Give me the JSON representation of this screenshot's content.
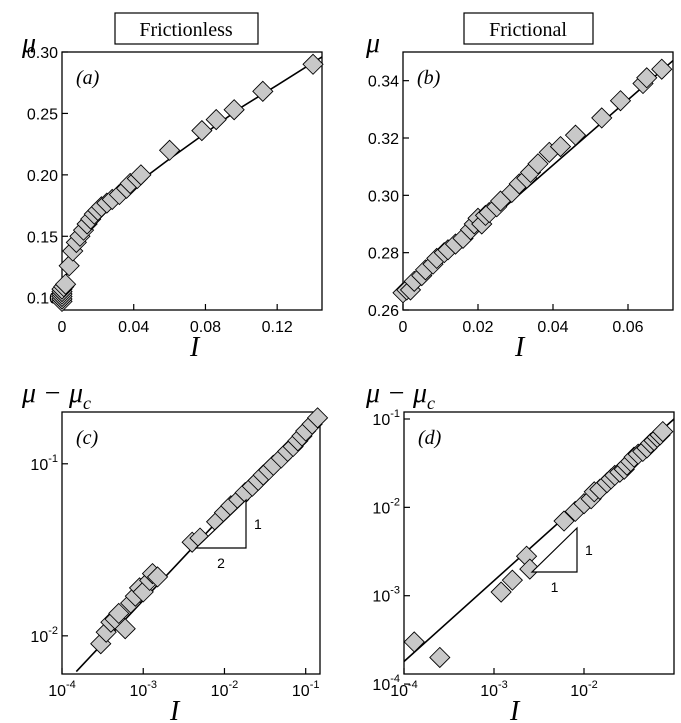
{
  "header_labels": [
    "Frictionless",
    "Frictional"
  ],
  "chart_data": [
    {
      "panel": "(a)",
      "type": "scatter",
      "xscale": "linear",
      "yscale": "linear",
      "ylabel": "μ",
      "xlabel": "I",
      "xlim": [
        0,
        0.145
      ],
      "ylim": [
        0.09,
        0.3
      ],
      "xticks": [
        0,
        0.04,
        0.08,
        0.12
      ],
      "xtick_labels": [
        "0",
        "0.04",
        "0.08",
        "0.12"
      ],
      "yticks": [
        0.1,
        0.15,
        0.2,
        0.25,
        0.3
      ],
      "ytick_labels": [
        "0.10",
        "0.15",
        "0.20",
        "0.25",
        "0.30"
      ],
      "series": [
        {
          "points": [
            [
              0,
              0.097
            ],
            [
              0,
              0.099
            ],
            [
              0,
              0.101
            ],
            [
              0,
              0.103
            ],
            [
              0,
              0.105
            ],
            [
              0,
              0.107
            ],
            [
              0.001,
              0.109
            ],
            [
              0.002,
              0.111
            ],
            [
              0.004,
              0.126
            ],
            [
              0.006,
              0.138
            ],
            [
              0.008,
              0.145
            ],
            [
              0.01,
              0.15
            ],
            [
              0.012,
              0.155
            ],
            [
              0.014,
              0.16
            ],
            [
              0.016,
              0.164
            ],
            [
              0.018,
              0.168
            ],
            [
              0.02,
              0.171
            ],
            [
              0.022,
              0.174
            ],
            [
              0.025,
              0.177
            ],
            [
              0.028,
              0.18
            ],
            [
              0.032,
              0.184
            ],
            [
              0.036,
              0.189
            ],
            [
              0.038,
              0.193
            ],
            [
              0.042,
              0.197
            ],
            [
              0.044,
              0.2
            ],
            [
              0.06,
              0.22
            ],
            [
              0.078,
              0.236
            ],
            [
              0.086,
              0.245
            ],
            [
              0.096,
              0.253
            ],
            [
              0.112,
              0.268
            ],
            [
              0.14,
              0.29
            ]
          ],
          "fit": [
            [
              0,
              0.104
            ],
            [
              0.002,
              0.117
            ],
            [
              0.005,
              0.128
            ],
            [
              0.01,
              0.143
            ],
            [
              0.02,
              0.163
            ],
            [
              0.03,
              0.178
            ],
            [
              0.04,
              0.191
            ],
            [
              0.06,
              0.213
            ],
            [
              0.08,
              0.234
            ],
            [
              0.1,
              0.255
            ],
            [
              0.12,
              0.273
            ],
            [
              0.145,
              0.296
            ]
          ]
        }
      ]
    },
    {
      "panel": "(b)",
      "type": "scatter",
      "xscale": "linear",
      "yscale": "linear",
      "ylabel": "μ",
      "xlabel": "I",
      "xlim": [
        0,
        0.072
      ],
      "ylim": [
        0.26,
        0.35
      ],
      "xticks": [
        0,
        0.02,
        0.04,
        0.06
      ],
      "xtick_labels": [
        "0",
        "0.02",
        "0.04",
        "0.06"
      ],
      "yticks": [
        0.26,
        0.28,
        0.3,
        0.32,
        0.34
      ],
      "ytick_labels": [
        "0.26",
        "0.28",
        "0.30",
        "0.32",
        "0.34"
      ],
      "series": [
        {
          "points": [
            [
              0,
              0.266
            ],
            [
              0.001,
              0.267
            ],
            [
              0.002,
              0.267
            ],
            [
              0.003,
              0.27
            ],
            [
              0.005,
              0.272
            ],
            [
              0.006,
              0.274
            ],
            [
              0.008,
              0.276
            ],
            [
              0.009,
              0.278
            ],
            [
              0.011,
              0.28
            ],
            [
              0.012,
              0.281
            ],
            [
              0.014,
              0.283
            ],
            [
              0.016,
              0.285
            ],
            [
              0.018,
              0.288
            ],
            [
              0.019,
              0.29
            ],
            [
              0.02,
              0.292
            ],
            [
              0.021,
              0.29
            ],
            [
              0.022,
              0.293
            ],
            [
              0.023,
              0.294
            ],
            [
              0.025,
              0.296
            ],
            [
              0.026,
              0.298
            ],
            [
              0.029,
              0.301
            ],
            [
              0.031,
              0.304
            ],
            [
              0.033,
              0.306
            ],
            [
              0.034,
              0.308
            ],
            [
              0.036,
              0.311
            ],
            [
              0.039,
              0.315
            ],
            [
              0.042,
              0.317
            ],
            [
              0.046,
              0.321
            ],
            [
              0.053,
              0.327
            ],
            [
              0.058,
              0.333
            ],
            [
              0.064,
              0.339
            ],
            [
              0.065,
              0.341
            ],
            [
              0.069,
              0.344
            ]
          ],
          "fit": [
            [
              0,
              0.265
            ],
            [
              0.072,
              0.347
            ]
          ]
        }
      ]
    },
    {
      "panel": "(c)",
      "type": "scatter",
      "xscale": "log",
      "yscale": "log",
      "ylabel": "μ − μ_c",
      "xlabel": "I",
      "xlim": [
        0.0001,
        0.15
      ],
      "ylim": [
        0.006,
        0.2
      ],
      "xticks": [
        0.0001,
        0.001,
        0.01,
        0.1
      ],
      "xtick_labels": [
        "10-4",
        "10-3",
        "10-2",
        "10-1"
      ],
      "yticks": [
        0.01,
        0.1
      ],
      "ytick_labels": [
        "10-2",
        "10-1"
      ],
      "slope_triangle": {
        "rise": "1",
        "run": "2"
      },
      "series": [
        {
          "points": [
            [
              0.0003,
              0.009
            ],
            [
              0.00035,
              0.0105
            ],
            [
              0.0004,
              0.012
            ],
            [
              0.00045,
              0.0125
            ],
            [
              0.0005,
              0.0135
            ],
            [
              0.0006,
              0.011
            ],
            [
              0.0007,
              0.0155
            ],
            [
              0.0008,
              0.017
            ],
            [
              0.0009,
              0.019
            ],
            [
              0.001,
              0.018
            ],
            [
              0.0012,
              0.021
            ],
            [
              0.0013,
              0.023
            ],
            [
              0.0015,
              0.022
            ],
            [
              0.004,
              0.035
            ],
            [
              0.005,
              0.037
            ],
            [
              0.008,
              0.046
            ],
            [
              0.01,
              0.052
            ],
            [
              0.012,
              0.057
            ],
            [
              0.015,
              0.062
            ],
            [
              0.018,
              0.068
            ],
            [
              0.022,
              0.074
            ],
            [
              0.026,
              0.08
            ],
            [
              0.03,
              0.086
            ],
            [
              0.035,
              0.092
            ],
            [
              0.04,
              0.098
            ],
            [
              0.05,
              0.108
            ],
            [
              0.06,
              0.118
            ],
            [
              0.07,
              0.126
            ],
            [
              0.08,
              0.136
            ],
            [
              0.09,
              0.145
            ],
            [
              0.1,
              0.155
            ],
            [
              0.12,
              0.17
            ],
            [
              0.14,
              0.185
            ]
          ],
          "fit": [
            [
              0.00015,
              0.0062
            ],
            [
              0.15,
              0.2
            ]
          ]
        }
      ]
    },
    {
      "panel": "(d)",
      "type": "scatter",
      "xscale": "log",
      "yscale": "log",
      "ylabel": "μ − μ_c",
      "xlabel": "I",
      "xlim": [
        0.0001,
        0.1
      ],
      "ylim": [
        0.00013,
        0.12
      ],
      "xticks": [
        0.0001,
        0.001,
        0.01
      ],
      "xtick_labels": [
        "10-4",
        "10-3",
        "10-2"
      ],
      "yticks": [
        0.0001,
        0.001,
        0.01,
        0.1
      ],
      "ytick_labels": [
        "10-4",
        "10-3",
        "10-2",
        "10-1"
      ],
      "slope_triangle": {
        "rise": "1",
        "run": "1"
      },
      "series": [
        {
          "points": [
            [
              0.00013,
              0.0003
            ],
            [
              0.00025,
              0.0002
            ],
            [
              0.0012,
              0.0011
            ],
            [
              0.0016,
              0.0015
            ],
            [
              0.0023,
              0.0028
            ],
            [
              0.0025,
              0.002
            ],
            [
              0.006,
              0.007
            ],
            [
              0.008,
              0.009
            ],
            [
              0.01,
              0.011
            ],
            [
              0.012,
              0.0125
            ],
            [
              0.013,
              0.015
            ],
            [
              0.015,
              0.016
            ],
            [
              0.018,
              0.019
            ],
            [
              0.02,
              0.021
            ],
            [
              0.022,
              0.023
            ],
            [
              0.025,
              0.025
            ],
            [
              0.028,
              0.027
            ],
            [
              0.03,
              0.03
            ],
            [
              0.033,
              0.033
            ],
            [
              0.036,
              0.037
            ],
            [
              0.04,
              0.04
            ],
            [
              0.045,
              0.043
            ],
            [
              0.05,
              0.047
            ],
            [
              0.055,
              0.053
            ],
            [
              0.06,
              0.057
            ],
            [
              0.065,
              0.062
            ],
            [
              0.07,
              0.066
            ],
            [
              0.075,
              0.072
            ]
          ],
          "fit": [
            [
              0.0001,
              0.00018
            ],
            [
              0.1,
              0.1
            ]
          ]
        }
      ]
    }
  ]
}
